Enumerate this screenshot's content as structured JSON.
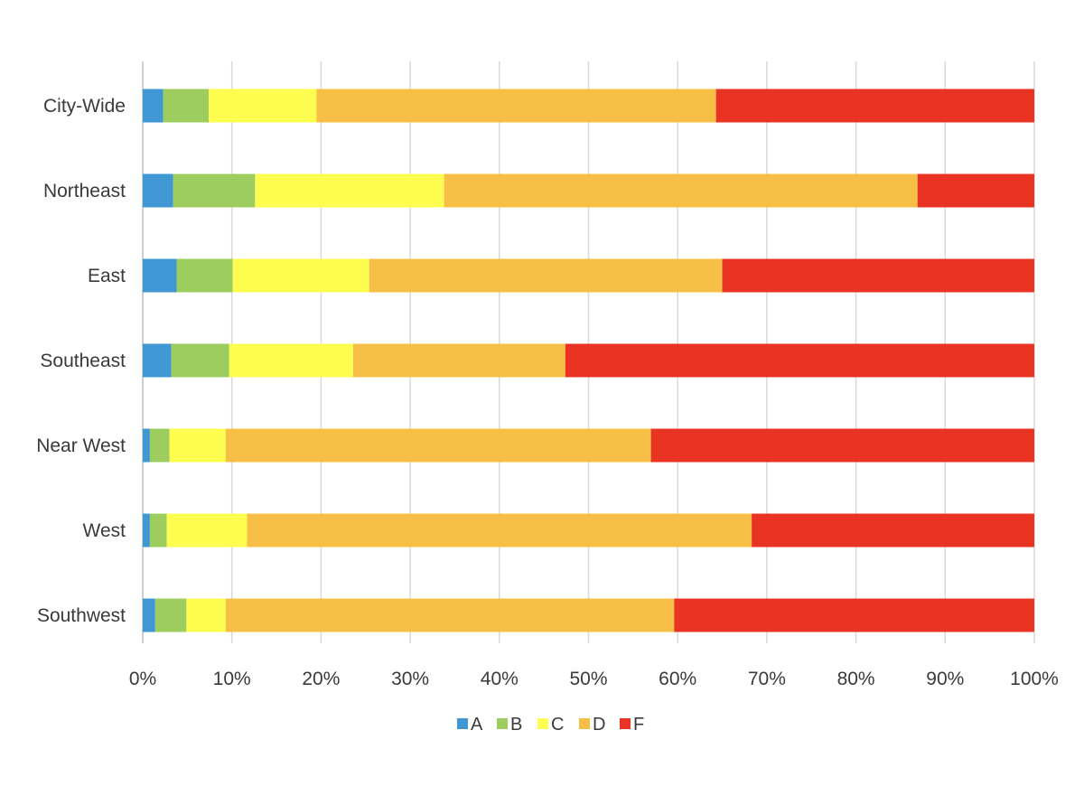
{
  "chart_data": {
    "type": "bar",
    "orientation": "horizontal",
    "stacked": "percent",
    "categories": [
      "City-Wide",
      "Northeast",
      "East",
      "Southeast",
      "Near West",
      "West",
      "Southwest"
    ],
    "series": [
      {
        "name": "A",
        "color": "#3f97d3",
        "values": [
          2.3,
          3.4,
          3.8,
          3.2,
          0.8,
          0.8,
          1.4
        ]
      },
      {
        "name": "B",
        "color": "#9dcd5f",
        "values": [
          5.1,
          9.2,
          6.3,
          6.5,
          2.2,
          1.9,
          3.5
        ]
      },
      {
        "name": "C",
        "color": "#fdfd4f",
        "values": [
          12.1,
          21.2,
          15.3,
          13.9,
          6.3,
          9.0,
          4.4
        ]
      },
      {
        "name": "D",
        "color": "#f7bf45",
        "values": [
          44.8,
          53.1,
          39.6,
          23.8,
          47.7,
          56.6,
          50.3
        ]
      },
      {
        "name": "F",
        "color": "#e93323",
        "values": [
          35.7,
          13.1,
          35.0,
          52.6,
          43.0,
          31.7,
          40.4
        ]
      }
    ],
    "x_ticks": [
      "0%",
      "10%",
      "20%",
      "30%",
      "40%",
      "50%",
      "60%",
      "70%",
      "80%",
      "90%",
      "100%"
    ],
    "xlim": [
      0,
      100
    ],
    "grid": true,
    "legend_position": "bottom",
    "title": "",
    "xlabel": "",
    "ylabel": ""
  }
}
